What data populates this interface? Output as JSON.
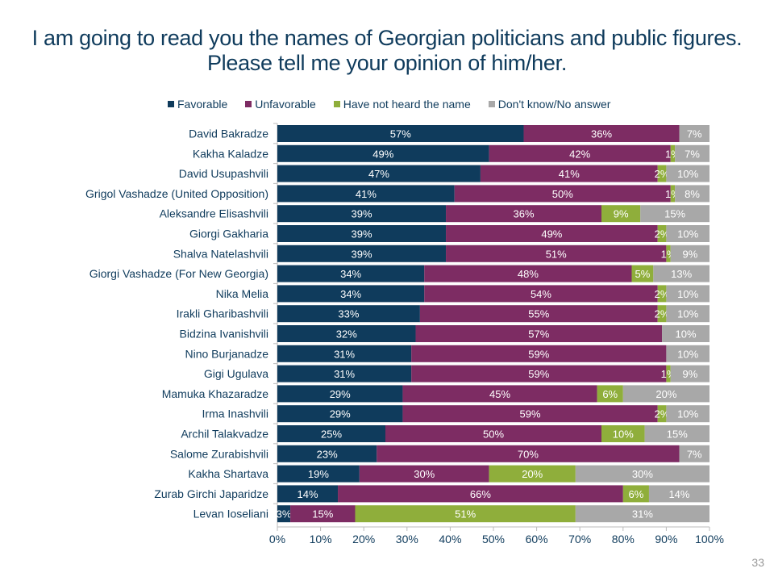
{
  "page_number": "33",
  "chart_data": {
    "type": "bar",
    "orientation": "horizontal-stacked-100",
    "title": "I am going to read you the names of Georgian politicians and public figures. Please tell me your opinion of him/her.",
    "xlabel": "",
    "ylabel": "",
    "xlim": [
      0,
      100
    ],
    "x_ticks": [
      "0%",
      "10%",
      "20%",
      "30%",
      "40%",
      "50%",
      "60%",
      "70%",
      "80%",
      "90%",
      "100%"
    ],
    "legend_position": "top",
    "categories": [
      "David Bakradze",
      "Kakha Kaladze",
      "David Usupashvili",
      "Grigol Vashadze (United Opposition)",
      "Aleksandre Elisashvili",
      "Giorgi Gakharia",
      "Shalva Natelashvili",
      "Giorgi Vashadze (For New Georgia)",
      "Nika Melia",
      "Irakli Gharibashvili",
      "Bidzina Ivanishvili",
      "Nino Burjanadze",
      "Gigi Ugulava",
      "Mamuka Khazaradze",
      "Irma Inashvili",
      "Archil Talakvadze",
      "Salome Zurabishvili",
      "Kakha Shartava",
      "Zurab Girchi Japaridze",
      "Levan Ioseliani"
    ],
    "series": [
      {
        "name": "Favorable",
        "color": "#0f3b5c",
        "values": [
          57,
          49,
          47,
          41,
          39,
          39,
          39,
          34,
          34,
          33,
          32,
          31,
          31,
          29,
          29,
          25,
          23,
          19,
          14,
          3
        ]
      },
      {
        "name": "Unfavorable",
        "color": "#7d2c63",
        "values": [
          36,
          42,
          41,
          50,
          36,
          49,
          51,
          48,
          54,
          55,
          57,
          59,
          59,
          45,
          59,
          50,
          70,
          30,
          66,
          15
        ]
      },
      {
        "name": "Have not heard the name",
        "color": "#8fae3b",
        "values": [
          0,
          1,
          2,
          1,
          9,
          2,
          1,
          5,
          2,
          2,
          0,
          0,
          1,
          6,
          2,
          10,
          0,
          20,
          6,
          51
        ]
      },
      {
        "name": "Don't know/No answer",
        "color": "#a8a8a8",
        "values": [
          7,
          7,
          10,
          8,
          15,
          10,
          9,
          13,
          10,
          10,
          10,
          10,
          9,
          20,
          10,
          15,
          7,
          30,
          14,
          31
        ]
      }
    ]
  }
}
